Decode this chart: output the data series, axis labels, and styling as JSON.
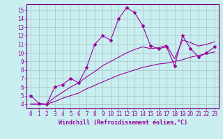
{
  "xlabel": "Windchill (Refroidissement éolien,°C)",
  "bg_color": "#c8eef0",
  "grid_color": "#b0c8cc",
  "line_color": "#990099",
  "spine_color": "#7a007a",
  "x_data": [
    0,
    1,
    2,
    3,
    4,
    5,
    6,
    7,
    8,
    9,
    10,
    11,
    12,
    13,
    14,
    15,
    16,
    17,
    18,
    19,
    20,
    21,
    22,
    23
  ],
  "y_main": [
    5.0,
    4.1,
    4.0,
    6.0,
    6.3,
    7.0,
    6.5,
    8.3,
    11.0,
    12.0,
    11.5,
    14.0,
    15.3,
    14.7,
    13.2,
    10.8,
    10.5,
    10.7,
    8.5,
    12.0,
    10.5,
    9.5,
    10.0,
    10.7
  ],
  "y_lower": [
    4.0,
    4.0,
    4.0,
    4.3,
    4.7,
    5.0,
    5.3,
    5.8,
    6.2,
    6.6,
    7.0,
    7.4,
    7.7,
    8.0,
    8.3,
    8.5,
    8.7,
    8.8,
    9.0,
    9.2,
    9.5,
    9.7,
    9.9,
    10.1
  ],
  "y_upper": [
    4.0,
    4.0,
    4.0,
    4.8,
    5.4,
    6.0,
    6.5,
    7.2,
    7.8,
    8.5,
    9.0,
    9.5,
    10.0,
    10.4,
    10.7,
    10.5,
    10.6,
    10.9,
    9.3,
    11.5,
    11.2,
    10.8,
    11.0,
    11.3
  ],
  "xlim": [
    -0.5,
    23.5
  ],
  "ylim": [
    3.5,
    15.7
  ],
  "xticks": [
    0,
    1,
    2,
    3,
    4,
    5,
    6,
    7,
    8,
    9,
    10,
    11,
    12,
    13,
    14,
    15,
    16,
    17,
    18,
    19,
    20,
    21,
    22,
    23
  ],
  "yticks": [
    4,
    5,
    6,
    7,
    8,
    9,
    10,
    11,
    12,
    13,
    14,
    15
  ]
}
